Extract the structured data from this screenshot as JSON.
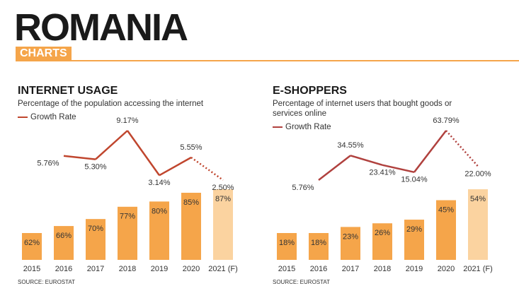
{
  "header": {
    "title": "ROMANIA",
    "badge": "CHARTS"
  },
  "chart_data": [
    {
      "type": "bar_line",
      "title": "INTERNET USAGE",
      "subtitle": "Percentage of the population accessing the internet",
      "categories": [
        "2015",
        "2016",
        "2017",
        "2018",
        "2019",
        "2020",
        "2021 (F)"
      ],
      "bars": {
        "values": [
          62,
          66,
          70,
          77,
          80,
          85,
          87
        ],
        "value_labels": [
          "62%",
          "66%",
          "70%",
          "77%",
          "80%",
          "85%",
          "87%"
        ],
        "colors": [
          "#f5a54a",
          "#f5a54a",
          "#f5a54a",
          "#f5a54a",
          "#f5a54a",
          "#f5a54a",
          "#fbd3a0"
        ]
      },
      "line": {
        "name": "Growth Rate",
        "color": "#c0462e",
        "values": [
          null,
          5.76,
          5.3,
          9.17,
          3.14,
          5.55,
          2.5
        ],
        "value_labels": [
          null,
          "5.76%",
          "5.30%",
          "9.17%",
          "3.14%",
          "5.55%",
          "2.50%"
        ],
        "dotted": [
          false,
          false,
          false,
          false,
          false,
          false,
          true
        ]
      },
      "source": "SOURCE: EUROSTAT"
    },
    {
      "type": "bar_line",
      "title": "E-SHOPPERS",
      "subtitle": "Percentage of internet users that bought goods or services online",
      "categories": [
        "2015",
        "2016",
        "2017",
        "2018",
        "2019",
        "2020",
        "2021 (F)"
      ],
      "bars": {
        "values": [
          18,
          18,
          23,
          26,
          29,
          45,
          54
        ],
        "value_labels": [
          "18%",
          "18%",
          "23%",
          "26%",
          "29%",
          "45%",
          "54%"
        ],
        "colors": [
          "#f5a54a",
          "#f5a54a",
          "#f5a54a",
          "#f5a54a",
          "#f5a54a",
          "#f5a54a",
          "#fbd3a0"
        ]
      },
      "line": {
        "name": "Growth Rate",
        "color": "#b0413e",
        "values": [
          null,
          5.76,
          34.55,
          23.41,
          15.04,
          63.79,
          22.0
        ],
        "value_labels": [
          null,
          "5.76%",
          "34.55%",
          "23.41%",
          "15.04%",
          "63.79%",
          "22.00%"
        ],
        "dotted": [
          false,
          false,
          false,
          false,
          false,
          false,
          true
        ]
      },
      "source": "SOURCE: EUROSTAT"
    }
  ]
}
